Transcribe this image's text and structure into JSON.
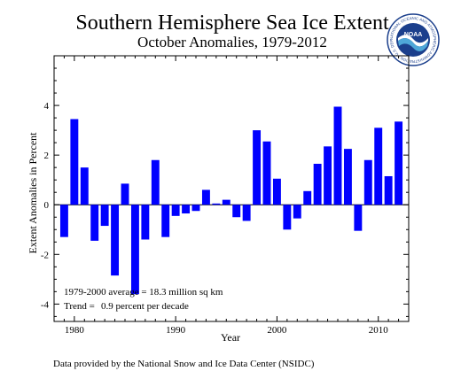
{
  "chart_data": {
    "type": "bar",
    "title": "Southern Hemisphere Sea Ice Extent",
    "subtitle": "October Anomalies, 1979-2012",
    "xlabel": "Year",
    "ylabel": "Extent Anomalies in Percent",
    "x_ticks": [
      1980,
      1990,
      2000,
      2010
    ],
    "y_ticks": [
      -4,
      -2,
      0,
      2,
      4
    ],
    "xlim": [
      1978,
      2013
    ],
    "ylim": [
      -4.7,
      6.0
    ],
    "grid": false,
    "bar_color": "#0000ff",
    "years": [
      1979,
      1980,
      1981,
      1982,
      1983,
      1984,
      1985,
      1986,
      1987,
      1988,
      1989,
      1990,
      1991,
      1992,
      1993,
      1994,
      1995,
      1996,
      1997,
      1998,
      1999,
      2000,
      2001,
      2002,
      2003,
      2004,
      2005,
      2006,
      2007,
      2008,
      2009,
      2010,
      2011,
      2012
    ],
    "values": [
      -1.3,
      3.45,
      1.5,
      -1.45,
      -0.85,
      -2.85,
      0.85,
      -3.6,
      -1.4,
      1.8,
      -1.3,
      -0.45,
      -0.35,
      -0.25,
      0.6,
      0.05,
      0.2,
      -0.5,
      -0.65,
      3.0,
      2.55,
      1.05,
      -1.0,
      -0.55,
      0.55,
      1.65,
      2.35,
      3.95,
      2.25,
      -1.05,
      1.8,
      3.1,
      1.15,
      3.35
    ],
    "annotations": {
      "average": "1979-2000 average = 18.3 million sq km",
      "trend_label": "Trend =",
      "trend_value": "0.9 percent per decade"
    }
  },
  "logo": {
    "text": "NOAA",
    "ring_text": "NATIONAL OCEANIC AND ATMOSPHERIC ADMINISTRATION · U.S. DEPARTMENT OF COMMERCE"
  },
  "footer": {
    "credit": "Data provided by the National Snow and Ice Data Center (NSIDC)"
  }
}
